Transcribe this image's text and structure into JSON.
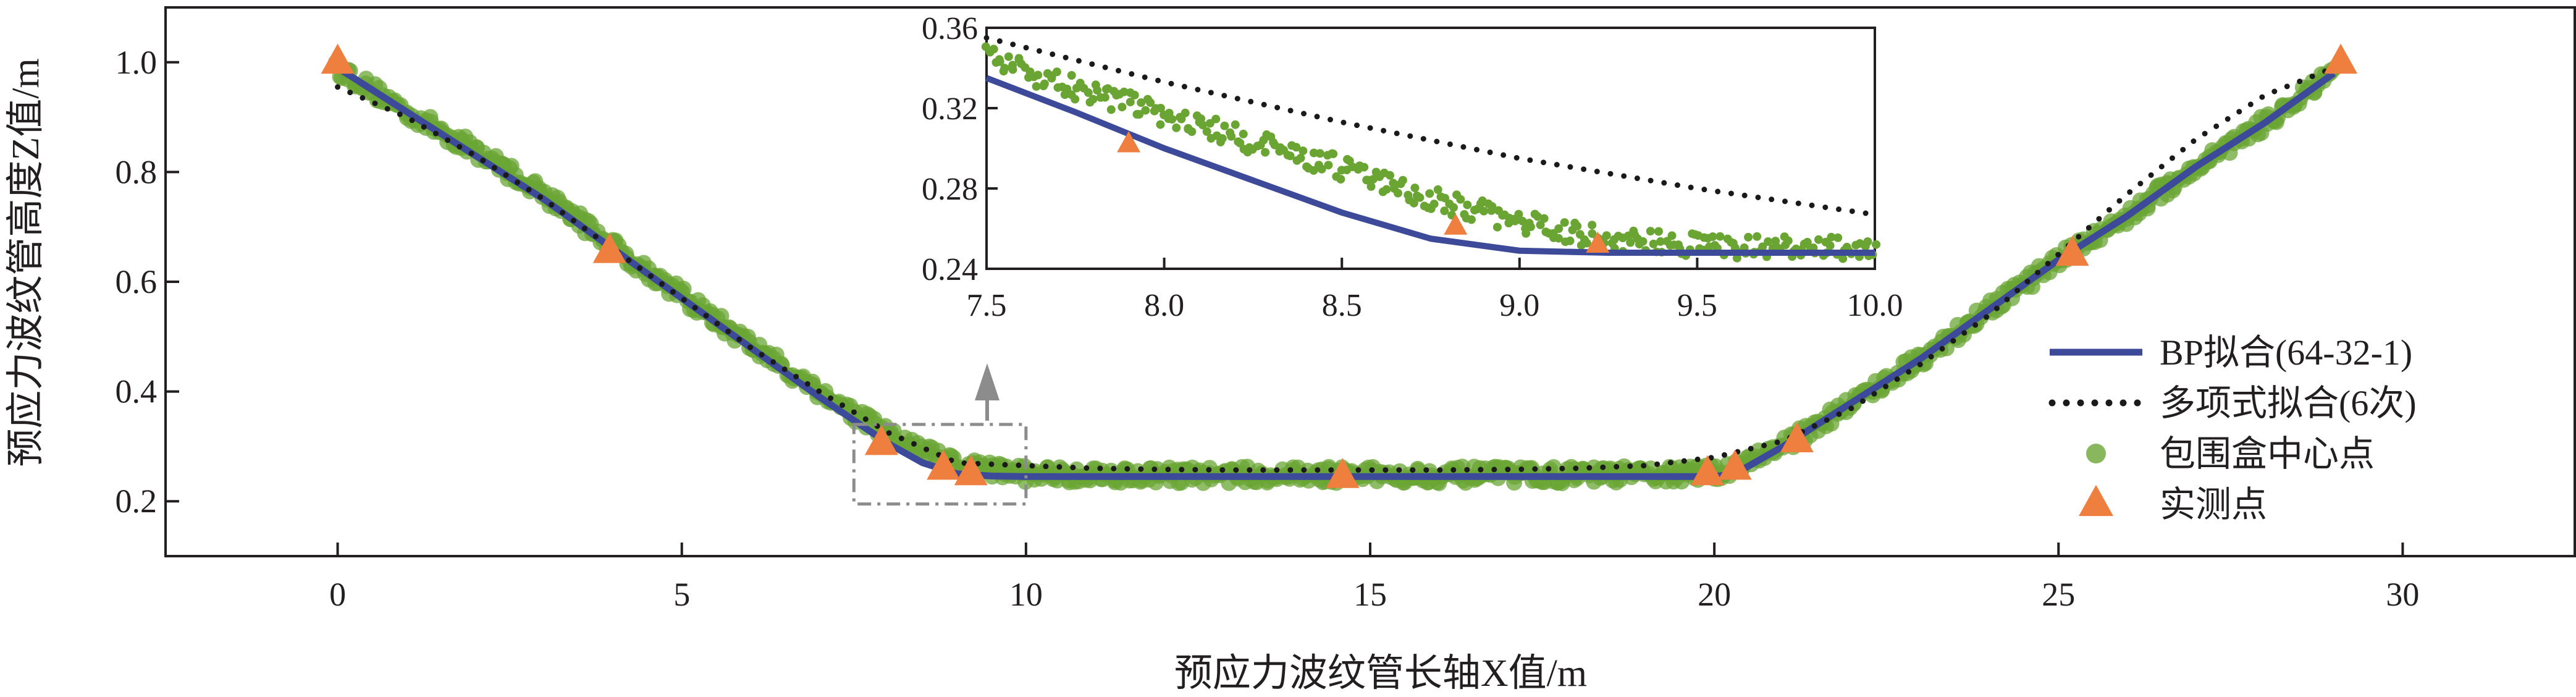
{
  "chart_data": {
    "type": "line",
    "xlabel": "预应力波纹管长轴X值/m",
    "ylabel": "预应力波纹管高度Z值/m",
    "xlim": [
      -2.5,
      32.5
    ],
    "ylim": [
      0.1,
      1.1
    ],
    "xticks": [
      {
        "value": 0,
        "label": "0"
      },
      {
        "value": 5,
        "label": "5"
      },
      {
        "value": 10,
        "label": "10"
      },
      {
        "value": 15,
        "label": "15"
      },
      {
        "value": 20,
        "label": "20"
      },
      {
        "value": 25,
        "label": "25"
      },
      {
        "value": 30,
        "label": "30"
      }
    ],
    "yticks": [
      {
        "value": 0.2,
        "label": "0.2"
      },
      {
        "value": 0.4,
        "label": "0.4"
      },
      {
        "value": 0.6,
        "label": "0.6"
      },
      {
        "value": 0.8,
        "label": "0.8"
      },
      {
        "value": 1.0,
        "label": "1.0"
      }
    ],
    "grid": false,
    "legend_position": "right",
    "colors": {
      "bp_fit": "#3c4a99",
      "poly_fit": "#1a1a1a",
      "bbox_center": "#6aa534",
      "measured": "#ef7f3e",
      "zoom_box": "#8c8c8c"
    },
    "series": [
      {
        "name": "BP拟合(64-32-1)",
        "style": "solid-line",
        "x": [
          0,
          1,
          2,
          3,
          4,
          5,
          6,
          7,
          8,
          8.5,
          9,
          9.5,
          10,
          12,
          14,
          16,
          18,
          20,
          20.3,
          21,
          22,
          23,
          24,
          25,
          26,
          27,
          28,
          29
        ],
        "y": [
          0.99,
          0.91,
          0.83,
          0.75,
          0.66,
          0.57,
          0.48,
          0.39,
          0.305,
          0.27,
          0.25,
          0.246,
          0.245,
          0.245,
          0.245,
          0.245,
          0.245,
          0.245,
          0.25,
          0.3,
          0.38,
          0.46,
          0.55,
          0.64,
          0.72,
          0.81,
          0.89,
          0.98
        ]
      },
      {
        "name": "多项式拟合(6次)",
        "style": "dotted",
        "x": [
          0,
          1,
          2,
          3,
          4,
          5,
          6,
          7,
          8,
          9,
          10,
          11,
          12,
          13,
          14,
          15,
          16,
          17,
          18,
          19,
          20,
          21,
          22,
          23,
          24,
          25,
          26,
          27,
          28,
          29
        ],
        "y": [
          0.955,
          0.9,
          0.83,
          0.75,
          0.66,
          0.57,
          0.48,
          0.4,
          0.325,
          0.27,
          0.265,
          0.26,
          0.258,
          0.257,
          0.257,
          0.257,
          0.257,
          0.258,
          0.26,
          0.265,
          0.28,
          0.31,
          0.37,
          0.45,
          0.54,
          0.65,
          0.76,
          0.86,
          0.94,
          0.99
        ]
      },
      {
        "name": "包围盒中心点",
        "style": "scatter-band",
        "x": [
          0,
          1,
          2,
          3,
          4,
          5,
          6,
          7,
          8,
          9,
          10,
          12,
          14,
          16,
          18,
          20,
          21,
          22,
          23,
          24,
          25,
          26,
          27,
          28,
          29
        ],
        "y": [
          0.99,
          0.91,
          0.84,
          0.76,
          0.665,
          0.575,
          0.485,
          0.4,
          0.32,
          0.265,
          0.25,
          0.248,
          0.248,
          0.248,
          0.248,
          0.25,
          0.3,
          0.38,
          0.46,
          0.55,
          0.64,
          0.72,
          0.81,
          0.89,
          0.98
        ]
      },
      {
        "name": "实测点",
        "style": "triangle-markers",
        "x": [
          0,
          3.95,
          7.9,
          8.8,
          9.2,
          14.6,
          19.9,
          20.3,
          21.2,
          25.2,
          29.1
        ],
        "y": [
          1.0,
          0.655,
          0.305,
          0.26,
          0.25,
          0.245,
          0.25,
          0.26,
          0.31,
          0.65,
          1.0
        ]
      }
    ],
    "zoom_box": {
      "x_range": [
        7.5,
        10.0
      ],
      "y_range": [
        0.195,
        0.34
      ]
    },
    "inset": {
      "xlim": [
        7.5,
        10.0
      ],
      "ylim": [
        0.24,
        0.36
      ],
      "xticks": [
        {
          "value": 7.5,
          "label": "7.5"
        },
        {
          "value": 8.0,
          "label": "8.0"
        },
        {
          "value": 8.5,
          "label": "8.5"
        },
        {
          "value": 9.0,
          "label": "9.0"
        },
        {
          "value": 9.5,
          "label": "9.5"
        },
        {
          "value": 10.0,
          "label": "10.0"
        }
      ],
      "yticks": [
        {
          "value": 0.24,
          "label": "0.24"
        },
        {
          "value": 0.28,
          "label": "0.28"
        },
        {
          "value": 0.32,
          "label": "0.32"
        },
        {
          "value": 0.36,
          "label": "0.36"
        }
      ],
      "bp_fit": {
        "x": [
          7.5,
          7.75,
          8.0,
          8.25,
          8.5,
          8.75,
          9.0,
          9.25,
          9.5,
          10.0
        ],
        "y": [
          0.335,
          0.318,
          0.3,
          0.284,
          0.268,
          0.255,
          0.249,
          0.248,
          0.248,
          0.248
        ]
      },
      "poly_fit": {
        "x": [
          7.5,
          8.0,
          8.5,
          9.0,
          9.5,
          10.0
        ],
        "y": [
          0.355,
          0.333,
          0.313,
          0.295,
          0.28,
          0.267
        ]
      },
      "bbox_center_band": {
        "x": [
          7.5,
          7.75,
          8.0,
          8.25,
          8.5,
          8.75,
          9.0,
          9.25,
          9.5,
          9.75,
          10.0
        ],
        "y": [
          0.345,
          0.33,
          0.317,
          0.303,
          0.29,
          0.275,
          0.263,
          0.255,
          0.252,
          0.25,
          0.25
        ]
      },
      "measured": {
        "x": [
          7.9,
          8.82,
          9.22
        ],
        "y": [
          0.302,
          0.261,
          0.252
        ]
      }
    }
  }
}
